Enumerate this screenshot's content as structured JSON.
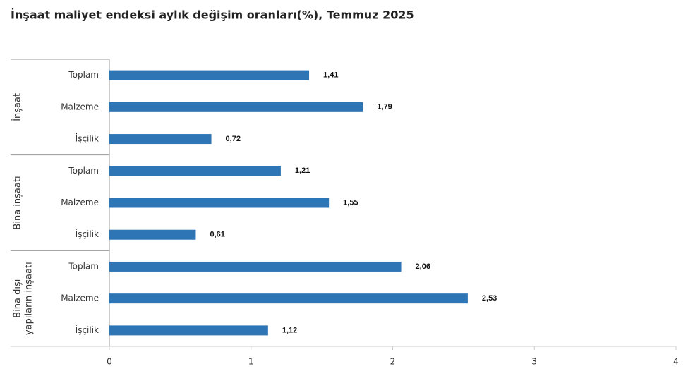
{
  "chart_data": {
    "type": "bar",
    "orientation": "horizontal",
    "title": "İnşaat maliyet endeksi aylık değişim oranları(%), Temmuz 2025",
    "color": "#2e75b6",
    "groups": [
      {
        "name_lines": [
          "İnşaat"
        ],
        "categories": [
          "Toplam",
          "Malzeme",
          "İşçilik"
        ],
        "values": [
          1.41,
          1.79,
          0.72
        ],
        "value_labels": [
          "1,41",
          "1,79",
          "0,72"
        ]
      },
      {
        "name_lines": [
          "Bina inşaatı"
        ],
        "categories": [
          "Toplam",
          "Malzeme",
          "İşçilik"
        ],
        "values": [
          1.21,
          1.55,
          0.61
        ],
        "value_labels": [
          "1,21",
          "1,55",
          "0,61"
        ]
      },
      {
        "name_lines": [
          "Bina dışı",
          "yapıların inşaatı"
        ],
        "categories": [
          "Toplam",
          "Malzeme",
          "İşçilik"
        ],
        "values": [
          2.06,
          2.53,
          1.12
        ],
        "value_labels": [
          "2,06",
          "2,53",
          "1,12"
        ]
      }
    ],
    "xlim": [
      0,
      4
    ],
    "xticks": [
      0,
      1,
      2,
      3,
      4
    ]
  }
}
